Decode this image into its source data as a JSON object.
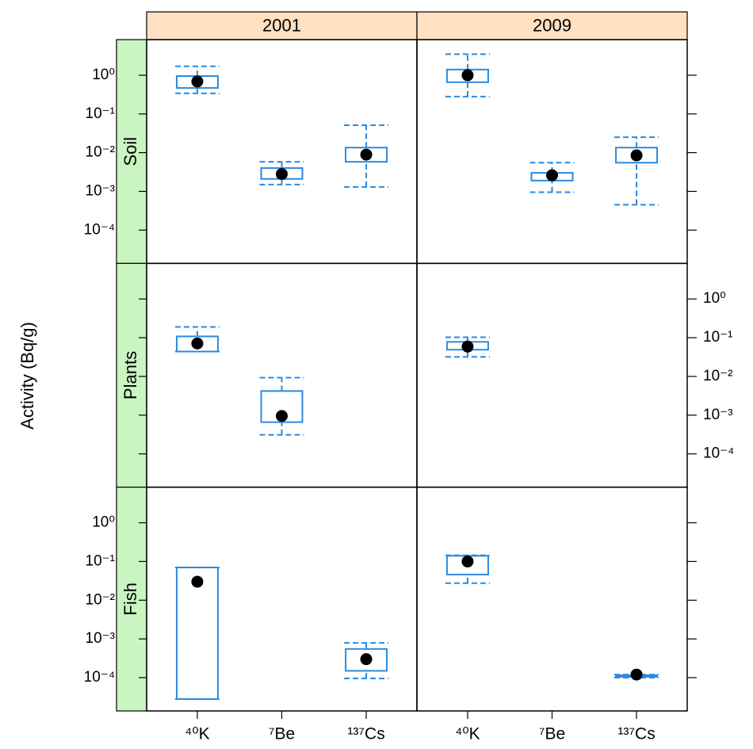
{
  "chart_data": {
    "type": "box",
    "y_label": "Activity (Bq/g)",
    "columns": [
      "2001",
      "2009"
    ],
    "rows": [
      "Soil",
      "Plants",
      "Fish"
    ],
    "categories": [
      "⁴⁰K",
      "⁷Be",
      "¹³⁷Cs"
    ],
    "log_y": true,
    "ylim": [
      1.38e-05,
      8.3
    ],
    "yticks": [
      {
        "value": 1,
        "label": "10⁰"
      },
      {
        "value": 0.1,
        "label": "10⁻¹"
      },
      {
        "value": 0.01,
        "label": "10⁻²"
      },
      {
        "value": 0.001,
        "label": "10⁻³"
      },
      {
        "value": 0.0001,
        "label": "10⁻⁴"
      }
    ],
    "color": "#2a8ae0",
    "point_color": "#000000",
    "column_strip_color": "#ffe0c0",
    "row_strip_color": "#c8f5c0",
    "panels": [
      [
        [
          {
            "low": 0.34,
            "q1": 0.47,
            "q3": 0.95,
            "high": 1.7,
            "point": 0.69
          },
          {
            "low": 0.0015,
            "q1": 0.0021,
            "q3": 0.004,
            "high": 0.0058,
            "point": 0.0028
          },
          {
            "low": 0.0013,
            "q1": 0.0058,
            "q3": 0.0135,
            "high": 0.051,
            "point": 0.0089
          }
        ],
        [
          {
            "low": 0.28,
            "q1": 0.66,
            "q3": 1.4,
            "high": 3.5,
            "point": 1.0
          },
          {
            "low": 0.00095,
            "q1": 0.0019,
            "q3": 0.003,
            "high": 0.0055,
            "point": 0.0026
          },
          {
            "low": 0.00045,
            "q1": 0.0055,
            "q3": 0.0135,
            "high": 0.025,
            "point": 0.0085
          }
        ]
      ],
      [
        [
          {
            "low": 0.044,
            "q1": 0.044,
            "q3": 0.108,
            "high": 0.19,
            "point": 0.071
          },
          {
            "low": 0.00031,
            "q1": 0.00066,
            "q3": 0.0042,
            "high": 0.0093,
            "point": 0.00095
          },
          null
        ],
        [
          {
            "low": 0.032,
            "q1": 0.049,
            "q3": 0.078,
            "high": 0.103,
            "point": 0.059
          },
          null,
          null
        ]
      ],
      [
        [
          {
            "low": 2.8e-05,
            "q1": 2.8e-05,
            "q3": 0.07,
            "high": 0.07,
            "point": 0.03
          },
          null,
          {
            "low": 9.5e-05,
            "q1": 0.00015,
            "q3": 0.00055,
            "high": 0.00079,
            "point": 0.0003
          }
        ],
        [
          {
            "low": 0.0275,
            "q1": 0.046,
            "q3": 0.14,
            "high": 0.144,
            "point": 0.1
          },
          null,
          {
            "low": 0.0001,
            "q1": 0.000105,
            "q3": 0.000115,
            "high": 0.00012,
            "point": 0.00012
          }
        ]
      ]
    ]
  }
}
